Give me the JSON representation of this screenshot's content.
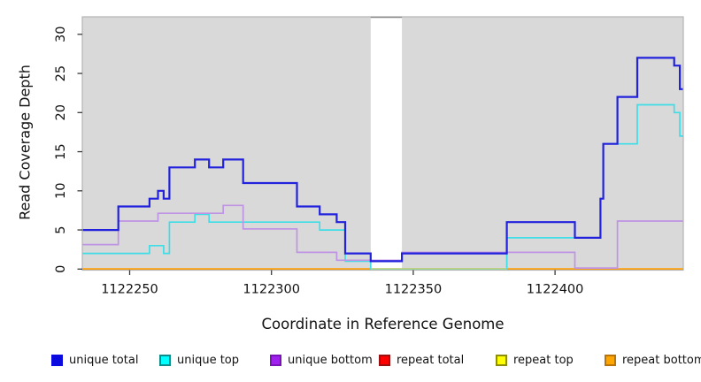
{
  "figure": {
    "xlabel": "Coordinate in Reference Genome",
    "ylabel": "Read Coverage Depth",
    "plot_background": "#d9d9d9",
    "frame_color": "#b3b3b3",
    "tick_color": "#3a3a3a"
  },
  "chart_data": {
    "type": "line",
    "subtype": "step-post-coverage",
    "title": "",
    "xlabel": "Coordinate in Reference Genome",
    "ylabel": "Read Coverage Depth",
    "xlim": [
      1122233,
      1122446
    ],
    "ylim": [
      0,
      32
    ],
    "x_ticks": [
      1122250,
      1122300,
      1122350,
      1122400
    ],
    "y_ticks": [
      0,
      5,
      10,
      15,
      20,
      25,
      30
    ],
    "grid": false,
    "legend_position": "bottom",
    "x_end": 1122446,
    "mask_region": {
      "start": 1122335,
      "end": 1122346,
      "color": "#ffffff"
    },
    "series": [
      {
        "name": "unique total",
        "color": "#2222dd",
        "width": 2.2,
        "steps": [
          [
            1122233,
            5
          ],
          [
            1122246,
            8
          ],
          [
            1122257,
            9
          ],
          [
            1122260,
            10
          ],
          [
            1122262,
            9
          ],
          [
            1122264,
            13
          ],
          [
            1122273,
            14
          ],
          [
            1122278,
            13
          ],
          [
            1122283,
            14
          ],
          [
            1122290,
            11
          ],
          [
            1122309,
            8
          ],
          [
            1122317,
            7
          ],
          [
            1122323,
            6
          ],
          [
            1122326,
            2
          ],
          [
            1122335,
            1
          ],
          [
            1122346,
            2
          ],
          [
            1122383,
            6
          ],
          [
            1122407,
            4
          ],
          [
            1122416,
            9
          ],
          [
            1122417,
            16
          ],
          [
            1122422,
            22
          ],
          [
            1122429,
            27
          ],
          [
            1122442,
            26
          ],
          [
            1122444,
            23
          ]
        ]
      },
      {
        "name": "unique top",
        "color": "#3fdde6",
        "width": 1.7,
        "steps": [
          [
            1122233,
            2
          ],
          [
            1122257,
            3
          ],
          [
            1122262,
            2
          ],
          [
            1122264,
            6
          ],
          [
            1122273,
            7
          ],
          [
            1122278,
            6
          ],
          [
            1122317,
            5
          ],
          [
            1122326,
            1
          ],
          [
            1122335,
            0
          ],
          [
            1122383,
            4
          ],
          [
            1122416,
            9
          ],
          [
            1122417,
            16
          ],
          [
            1122429,
            21
          ],
          [
            1122442,
            20
          ],
          [
            1122444,
            17
          ]
        ]
      },
      {
        "name": "unique bottom",
        "color": "#bf94e4",
        "width": 1.7,
        "steps": [
          [
            1122233,
            3
          ],
          [
            1122246,
            6
          ],
          [
            1122260,
            7
          ],
          [
            1122283,
            8
          ],
          [
            1122290,
            5
          ],
          [
            1122309,
            2
          ],
          [
            1122323,
            1
          ],
          [
            1122346,
            2
          ],
          [
            1122407,
            0
          ],
          [
            1122422,
            6
          ]
        ]
      },
      {
        "name": "repeat total",
        "color": "#e02020",
        "width": 1.7,
        "steps": [
          [
            1122233,
            0
          ]
        ]
      },
      {
        "name": "repeat top",
        "color": "#f0f020",
        "width": 1.7,
        "steps": [
          [
            1122233,
            0
          ]
        ]
      },
      {
        "name": "repeat bottom",
        "color": "#ff9d00",
        "width": 2.0,
        "steps": [
          [
            1122233,
            0
          ]
        ]
      }
    ],
    "overlays": [
      {
        "type": "zero-line-segment",
        "start": 1122335,
        "end": 1122383,
        "color": "#97dd97",
        "note": "unique-top at depth 0"
      }
    ]
  },
  "legend": {
    "items": [
      {
        "label": "unique total",
        "fill": "#0b0bdf",
        "border": "#0b0bdf"
      },
      {
        "label": "unique top",
        "fill": "#00ffff",
        "border": "#0e8c8c"
      },
      {
        "label": "unique bottom",
        "fill": "#a020f0",
        "border": "#7a14b8"
      },
      {
        "label": "repeat total",
        "fill": "#ff0000",
        "border": "#991111"
      },
      {
        "label": "repeat top",
        "fill": "#ffff00",
        "border": "#8c8c0e"
      },
      {
        "label": "repeat bottom",
        "fill": "#ffa500",
        "border": "#b87408"
      }
    ]
  }
}
